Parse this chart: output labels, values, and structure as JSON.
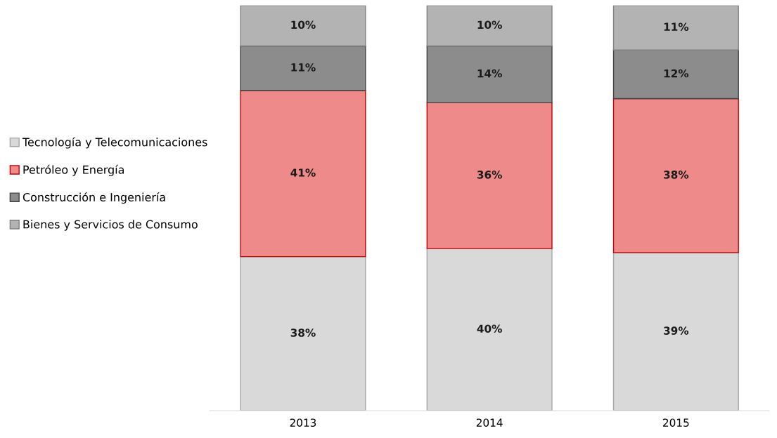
{
  "chart_data": {
    "type": "bar",
    "stacked": true,
    "categories": [
      "2013",
      "2014",
      "2015"
    ],
    "series": [
      {
        "name": "Tecnología y Telecomunicaciones",
        "color": "#d9d9d9",
        "values": [
          38,
          40,
          39
        ],
        "value_labels": [
          "38%",
          "40%",
          "39%"
        ]
      },
      {
        "name": "Petróleo y Energía",
        "color": "#ee8a8a",
        "values": [
          41,
          36,
          38
        ],
        "value_labels": [
          "41%",
          "36%",
          "38%"
        ]
      },
      {
        "name": "Construcción e Ingeniería",
        "color": "#8c8c8c",
        "values": [
          11,
          14,
          12
        ],
        "value_labels": [
          "11%",
          "14%",
          "12%"
        ]
      },
      {
        "name": "Bienes y Servicios de Consumo",
        "color": "#b3b3b3",
        "values": [
          10,
          10,
          11
        ],
        "value_labels": [
          "10%",
          "10%",
          "11%"
        ]
      }
    ],
    "tick_labels": "x",
    "legend": "left"
  }
}
